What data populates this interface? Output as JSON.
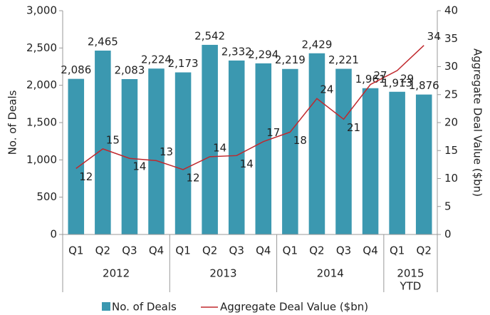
{
  "chart_data": {
    "type": "bar+line",
    "category_groups": [
      {
        "label": [
          "2012"
        ],
        "categories": [
          "Q1",
          "Q2",
          "Q3",
          "Q4"
        ]
      },
      {
        "label": [
          "2013"
        ],
        "categories": [
          "Q1",
          "Q2",
          "Q3",
          "Q4"
        ]
      },
      {
        "label": [
          "2014"
        ],
        "categories": [
          "Q1",
          "Q2",
          "Q3",
          "Q4"
        ]
      },
      {
        "label": [
          "2015",
          "YTD"
        ],
        "categories": [
          "Q1",
          "Q2"
        ]
      }
    ],
    "series": [
      {
        "name": "No. of Deals",
        "type": "bar",
        "color": "#3b98b0",
        "values": [
          2086,
          2465,
          2083,
          2224,
          2173,
          2542,
          2332,
          2294,
          2219,
          2429,
          2221,
          1961,
          1913,
          1876
        ],
        "value_labels": [
          "2,086",
          "2,465",
          "2,083",
          "2,224",
          "2,173",
          "2,542",
          "2,332",
          "2,294",
          "2,219",
          "2,429",
          "2,221",
          "1,961",
          "1,913",
          "1,876"
        ]
      },
      {
        "name": "Aggregate Deal Value ($bn)",
        "type": "line",
        "axis": "y2",
        "color": "#c0282d",
        "values": [
          11.8,
          15.3,
          13.6,
          13.2,
          11.6,
          13.9,
          14.1,
          16.6,
          18.3,
          24.3,
          20.6,
          26.8,
          29.3,
          33.8
        ],
        "value_labels": [
          "12",
          "15",
          "14",
          "13",
          "12",
          "14",
          "14",
          "17",
          "18",
          "24",
          "21",
          "27",
          "29",
          "34"
        ]
      }
    ],
    "y_label": "No. of Deals",
    "y2_label": "Aggregate Deal Value ($bn)",
    "ylim": [
      0,
      3000
    ],
    "yticks": [
      0,
      500,
      {
        "value": 1000,
        "label": "1,000"
      },
      {
        "value": 1500,
        "label": "1,500"
      },
      {
        "value": 2000,
        "label": "2,000"
      },
      {
        "value": 2500,
        "label": "2,500"
      },
      {
        "value": 3000,
        "label": "3,000"
      }
    ],
    "y2lim": [
      0,
      40
    ],
    "y2ticks": [
      0,
      5,
      10,
      15,
      20,
      25,
      30,
      35,
      40
    ],
    "legend": "bottom"
  }
}
